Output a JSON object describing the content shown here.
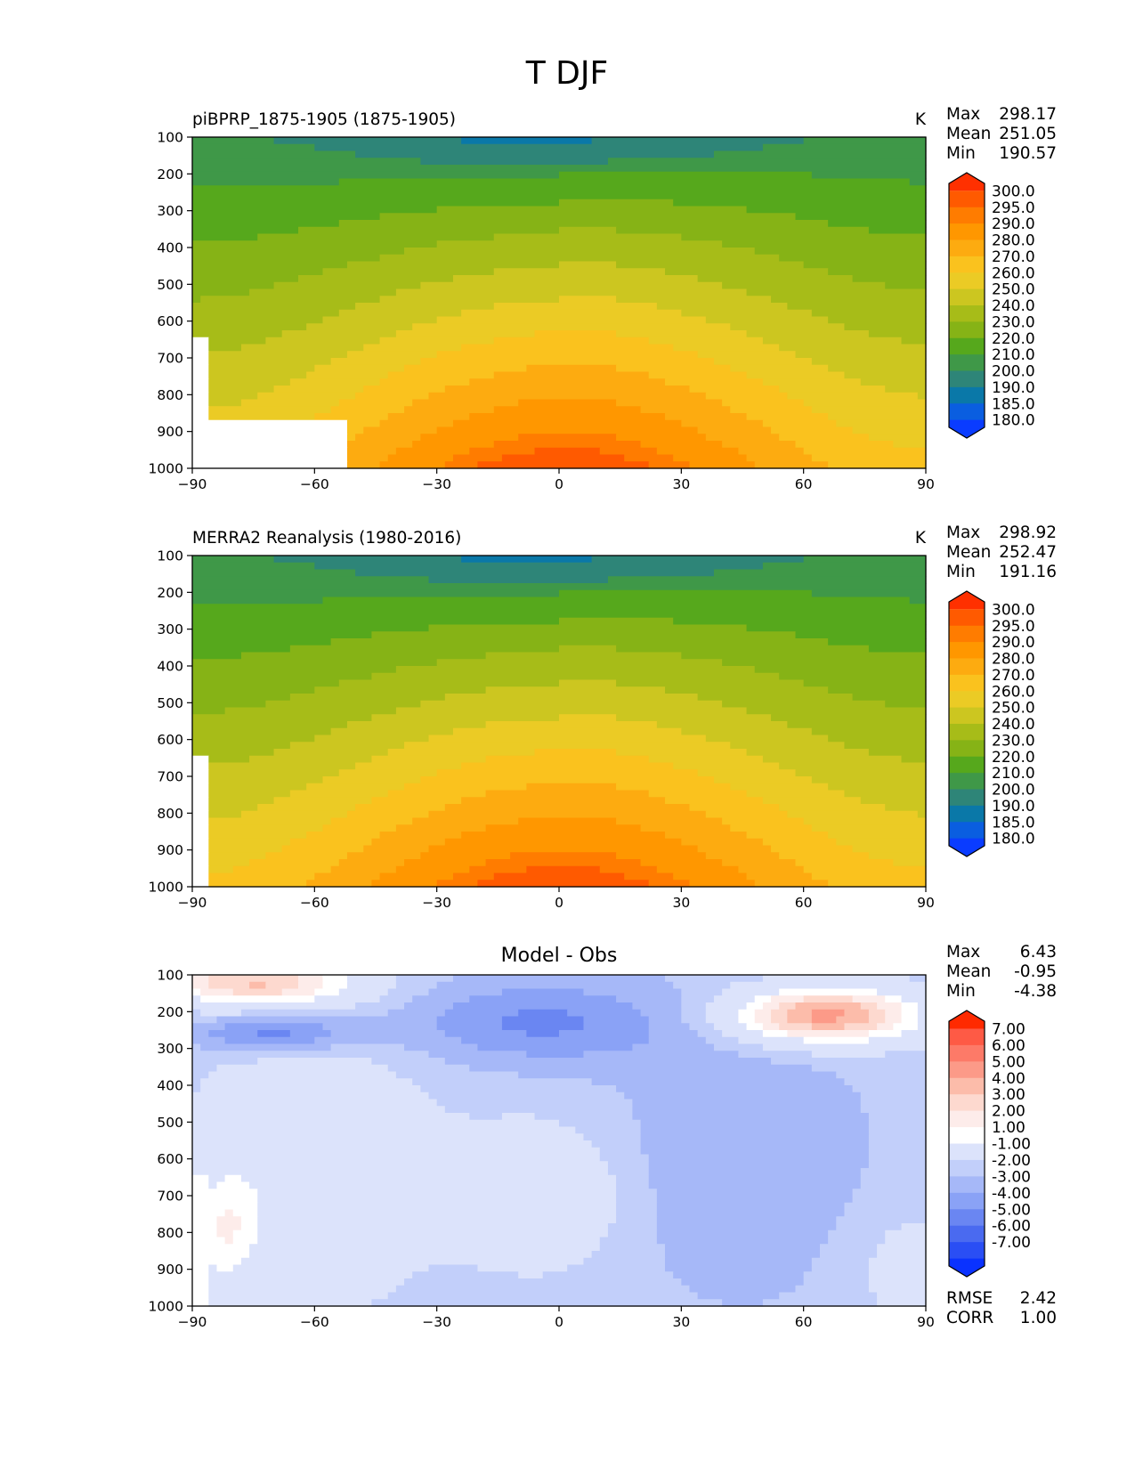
{
  "figure": {
    "title": "T DJF"
  },
  "chart_data": [
    {
      "type": "contour",
      "title": "piBPRP_1875-1905 (1875-1905)",
      "units": "K",
      "xlabel": "",
      "ylabel": "",
      "xlim": [
        -90,
        90
      ],
      "ylim": [
        1000,
        100
      ],
      "xticks": [
        "−90",
        "−60",
        "−30",
        "0",
        "30",
        "60",
        "90"
      ],
      "yticks": [
        "100",
        "200",
        "300",
        "400",
        "500",
        "600",
        "700",
        "800",
        "900",
        "1000"
      ],
      "stats": [
        {
          "label": "Max",
          "value": "298.17"
        },
        {
          "label": "Mean",
          "value": "251.05"
        },
        {
          "label": "Min",
          "value": "190.57"
        }
      ],
      "colorbar": {
        "levels": [
          "300.0",
          "295.0",
          "290.0",
          "280.0",
          "270.0",
          "260.0",
          "250.0",
          "240.0",
          "230.0",
          "220.0",
          "210.0",
          "200.0",
          "190.0",
          "185.0",
          "180.0"
        ],
        "colors": [
          "#ff3000",
          "#ff5a00",
          "#ff7c00",
          "#ff9700",
          "#fdab10",
          "#fac21e",
          "#ebcb25",
          "#ccc620",
          "#a7bc18",
          "#86b316",
          "#56a81c",
          "#3f9848",
          "#2e8578",
          "#0a78a8",
          "#0a5ee0",
          "#0a3cff"
        ]
      }
    },
    {
      "type": "contour",
      "title": "MERRA2 Reanalysis (1980-2016)",
      "units": "K",
      "xlabel": "",
      "ylabel": "",
      "xlim": [
        -90,
        90
      ],
      "ylim": [
        1000,
        100
      ],
      "xticks": [
        "−90",
        "−60",
        "−30",
        "0",
        "30",
        "60",
        "90"
      ],
      "yticks": [
        "100",
        "200",
        "300",
        "400",
        "500",
        "600",
        "700",
        "800",
        "900",
        "1000"
      ],
      "stats": [
        {
          "label": "Max",
          "value": "298.92"
        },
        {
          "label": "Mean",
          "value": "252.47"
        },
        {
          "label": "Min",
          "value": "191.16"
        }
      ],
      "colorbar": {
        "levels": [
          "300.0",
          "295.0",
          "290.0",
          "280.0",
          "270.0",
          "260.0",
          "250.0",
          "240.0",
          "230.0",
          "220.0",
          "210.0",
          "200.0",
          "190.0",
          "185.0",
          "180.0"
        ],
        "colors": [
          "#ff3000",
          "#ff5a00",
          "#ff7c00",
          "#ff9700",
          "#fdab10",
          "#fac21e",
          "#ebcb25",
          "#ccc620",
          "#a7bc18",
          "#86b316",
          "#56a81c",
          "#3f9848",
          "#2e8578",
          "#0a78a8",
          "#0a5ee0",
          "#0a3cff"
        ]
      }
    },
    {
      "type": "contour",
      "title": "Model - Obs",
      "units": "",
      "xlabel": "",
      "ylabel": "",
      "xlim": [
        -90,
        90
      ],
      "ylim": [
        1000,
        100
      ],
      "xticks": [
        "−90",
        "−60",
        "−30",
        "0",
        "30",
        "60",
        "90"
      ],
      "yticks": [
        "100",
        "200",
        "300",
        "400",
        "500",
        "600",
        "700",
        "800",
        "900",
        "1000"
      ],
      "stats": [
        {
          "label": "Max",
          "value": "6.43"
        },
        {
          "label": "Mean",
          "value": "-0.95"
        },
        {
          "label": "Min",
          "value": "-4.38"
        }
      ],
      "metrics": [
        {
          "label": "RMSE",
          "value": "2.42"
        },
        {
          "label": "CORR",
          "value": "1.00"
        }
      ],
      "colorbar": {
        "levels": [
          "7.00",
          "6.00",
          "5.00",
          "4.00",
          "3.00",
          "2.00",
          "1.00",
          "-1.00",
          "-2.00",
          "-3.00",
          "-4.00",
          "-5.00",
          "-6.00",
          "-7.00"
        ],
        "colors": [
          "#ff2a00",
          "#fe5a45",
          "#fd7a68",
          "#fc9a88",
          "#fcbcaa",
          "#fdd9cf",
          "#fdecea",
          "#ffffff",
          "#dce3fb",
          "#c2cffa",
          "#a6b8f8",
          "#8aa2f6",
          "#6a86f2",
          "#4a6af0",
          "#2a4ef4",
          "#0a32ff"
        ]
      }
    }
  ]
}
